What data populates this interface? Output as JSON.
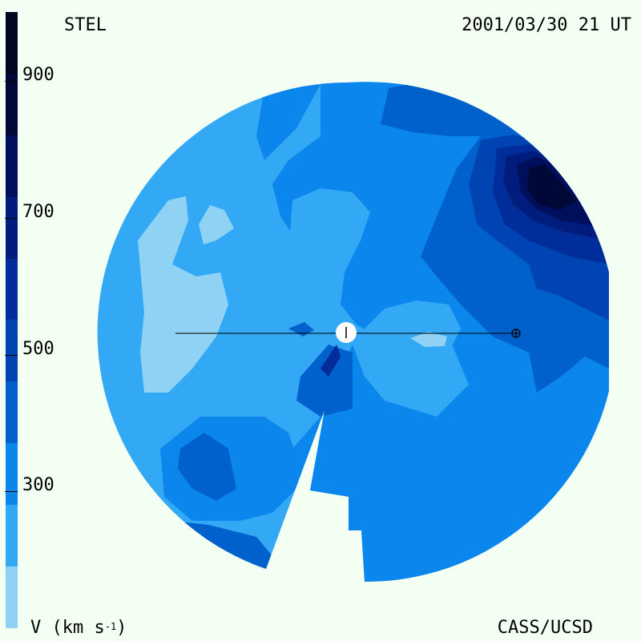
{
  "header": {
    "station": "STEL",
    "timestamp": "2001/03/30 21 UT"
  },
  "footer": {
    "credit": "CASS/UCSD"
  },
  "colorbar": {
    "unit_label": "V (km s",
    "unit_exp": "-1",
    "ticks": [
      "300",
      "500",
      "700",
      "900"
    ],
    "levels_bottom_to_top": [
      "#8fd2f3",
      "#33a9f5",
      "#0a86ec",
      "#0060cc",
      "#0043b3",
      "#002d9a",
      "#001c7c",
      "#000f5c",
      "#000838",
      "#000520"
    ]
  },
  "colors": {
    "background": "#f3fff3",
    "sun": "#ffffff",
    "line": "#000000"
  }
}
